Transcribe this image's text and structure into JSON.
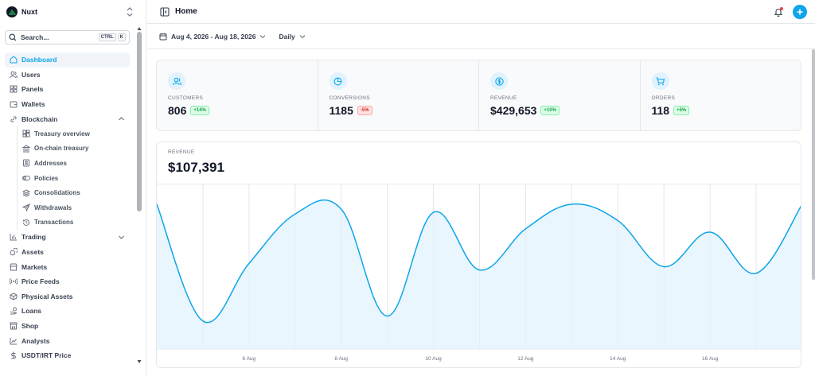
{
  "app": {
    "name": "Nuxt"
  },
  "search": {
    "label": "Search...",
    "kbd1": "CTRL",
    "kbd2": "K"
  },
  "nav": [
    {
      "label": "Dashboard",
      "icon": "house-icon",
      "active": true
    },
    {
      "label": "Users",
      "icon": "users-icon"
    },
    {
      "label": "Panels",
      "icon": "grid-icon"
    },
    {
      "label": "Wallets",
      "icon": "wallet-icon"
    },
    {
      "label": "Blockchain",
      "icon": "link-icon",
      "expanded": true
    }
  ],
  "blockchain_sub": [
    {
      "label": "Treasury overview",
      "icon": "layout-icon"
    },
    {
      "label": "On-chain treasury",
      "icon": "bank-icon"
    },
    {
      "label": "Addresses",
      "icon": "contact-icon"
    },
    {
      "label": "Policies",
      "icon": "toggle-icon"
    },
    {
      "label": "Consolidations",
      "icon": "layers-icon"
    },
    {
      "label": "Withdrawals",
      "icon": "send-icon"
    },
    {
      "label": "Transactions",
      "icon": "history-icon"
    }
  ],
  "nav2": [
    {
      "label": "Trading",
      "icon": "bar-chart-icon",
      "collapsed": true
    },
    {
      "label": "Assets",
      "icon": "coins-icon"
    },
    {
      "label": "Markets",
      "icon": "store-icon"
    },
    {
      "label": "Price Feeds",
      "icon": "radio-icon"
    },
    {
      "label": "Physical Assets",
      "icon": "box-icon"
    },
    {
      "label": "Loans",
      "icon": "hand-coins-icon"
    },
    {
      "label": "Shop",
      "icon": "shop-icon"
    },
    {
      "label": "Analysts",
      "icon": "trend-icon"
    },
    {
      "label": "USDT/IRT Price",
      "icon": "dollar-icon"
    }
  ],
  "header": {
    "title": "Home"
  },
  "toolbar": {
    "date_range": "Aug 4, 2026 - Aug 18, 2026",
    "period": "Daily"
  },
  "stats": [
    {
      "label": "CUSTOMERS",
      "value": "806",
      "change": "+14%",
      "trend": "pos",
      "icon": "users-icon"
    },
    {
      "label": "CONVERSIONS",
      "value": "1185",
      "change": "-5%",
      "trend": "neg",
      "icon": "pie-icon"
    },
    {
      "label": "REVENUE",
      "value": "$429,653",
      "change": "+10%",
      "trend": "pos",
      "icon": "dollar-circle-icon"
    },
    {
      "label": "ORDERS",
      "value": "118",
      "change": "+5%",
      "trend": "pos",
      "icon": "cart-icon"
    }
  ],
  "revenue": {
    "label": "REVENUE",
    "value": "$107,391"
  },
  "colors": {
    "accent": "#0ea5e9",
    "fill": "#e0f2fe"
  },
  "chart_data": {
    "type": "area",
    "title": "",
    "xlabel": "",
    "ylabel": "",
    "x_tick_labels": [
      "6 Aug",
      "8 Aug",
      "10 Aug",
      "12 Aug",
      "14 Aug",
      "16 Aug"
    ],
    "x": [
      "4 Aug",
      "5 Aug",
      "6 Aug",
      "7 Aug",
      "8 Aug",
      "9 Aug",
      "10 Aug",
      "11 Aug",
      "12 Aug",
      "13 Aug",
      "14 Aug",
      "15 Aug",
      "16 Aug",
      "17 Aug",
      "18 Aug"
    ],
    "series": [
      {
        "values": [
          0.88,
          0.17,
          0.52,
          0.82,
          0.85,
          0.2,
          0.83,
          0.48,
          0.73,
          0.88,
          0.78,
          0.5,
          0.71,
          0.46,
          0.88
        ]
      }
    ],
    "grid": true
  }
}
